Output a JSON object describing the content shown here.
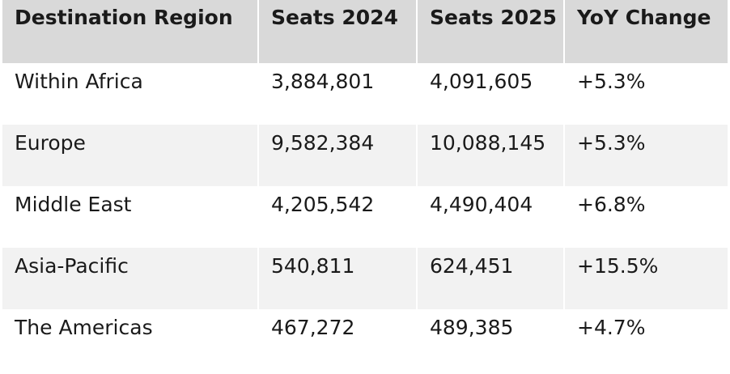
{
  "table": {
    "headers": [
      "Destination Region",
      "Seats 2024",
      "Seats 2025",
      "YoY Change"
    ],
    "rows": [
      [
        "Within Africa",
        "3,884,801",
        "4,091,605",
        "+5.3%"
      ],
      [
        "Europe",
        "9,582,384",
        "10,088,145",
        "+5.3%"
      ],
      [
        "Middle East",
        "4,205,542",
        "4,490,404",
        "+6.8%"
      ],
      [
        "Asia-Pacific",
        "540,811",
        "624,451",
        "+15.5%"
      ],
      [
        "The Americas",
        "467,272",
        "489,385",
        "+4.7%"
      ]
    ]
  },
  "colors": {
    "header_bg": "#d9d9d9",
    "stripe_bg": "#f2f2f2",
    "text": "#1a1a1a"
  }
}
